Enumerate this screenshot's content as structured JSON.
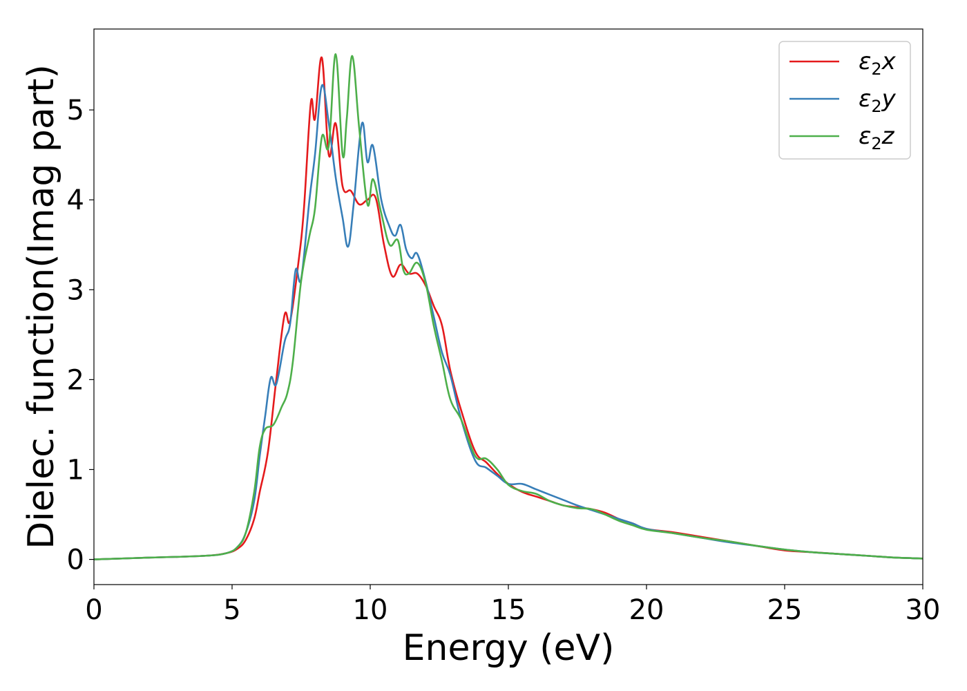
{
  "chart_data": {
    "type": "line",
    "xlabel": "Energy (eV)",
    "ylabel": "Dielec. function(Imag part)",
    "xlim": [
      0,
      30
    ],
    "ylim": [
      -0.28,
      5.9
    ],
    "xticks": [
      0,
      5,
      10,
      15,
      20,
      25,
      30
    ],
    "yticks": [
      0,
      1,
      2,
      3,
      4,
      5
    ],
    "xtick_labels": [
      "0",
      "5",
      "10",
      "15",
      "20",
      "25",
      "30"
    ],
    "ytick_labels": [
      "0",
      "1",
      "2",
      "3",
      "4",
      "5"
    ],
    "grid": false,
    "legend_position": "top-right",
    "series": [
      {
        "name": "ε2x",
        "name_base": "ε",
        "name_sub": "2",
        "name_tail": "x",
        "color": "#e41a1c",
        "x": [
          0,
          2,
          4,
          4.8,
          5.2,
          5.5,
          5.8,
          6.0,
          6.3,
          6.6,
          6.9,
          7.1,
          7.4,
          7.6,
          7.85,
          8.0,
          8.25,
          8.5,
          8.75,
          9.0,
          9.3,
          9.6,
          9.9,
          10.2,
          10.5,
          10.8,
          11.1,
          11.4,
          11.7,
          12.0,
          12.3,
          12.6,
          12.9,
          13.3,
          13.8,
          14.2,
          14.6,
          15.0,
          15.5,
          16.0,
          16.5,
          17.0,
          17.5,
          18.0,
          18.5,
          19.0,
          19.5,
          20.0,
          21.0,
          22.0,
          23.0,
          24.0,
          25.0,
          26.0,
          27.0,
          28.0,
          29.0,
          30.0
        ],
        "y": [
          0.0,
          0.02,
          0.04,
          0.07,
          0.12,
          0.22,
          0.45,
          0.75,
          1.2,
          2.0,
          2.72,
          2.65,
          3.3,
          3.9,
          5.08,
          4.9,
          5.58,
          4.5,
          4.85,
          4.15,
          4.1,
          3.95,
          4.0,
          4.02,
          3.5,
          3.15,
          3.28,
          3.18,
          3.18,
          3.05,
          2.82,
          2.6,
          2.1,
          1.65,
          1.2,
          1.08,
          0.95,
          0.84,
          0.75,
          0.7,
          0.65,
          0.6,
          0.58,
          0.56,
          0.52,
          0.45,
          0.4,
          0.34,
          0.3,
          0.25,
          0.2,
          0.15,
          0.1,
          0.08,
          0.06,
          0.04,
          0.02,
          0.01
        ]
      },
      {
        "name": "ε2y",
        "name_base": "ε",
        "name_sub": "2",
        "name_tail": "y",
        "color": "#377eb8",
        "x": [
          0,
          2,
          4,
          4.8,
          5.2,
          5.5,
          5.8,
          6.0,
          6.2,
          6.4,
          6.6,
          6.9,
          7.1,
          7.3,
          7.5,
          7.8,
          8.0,
          8.25,
          8.5,
          8.75,
          9.0,
          9.2,
          9.4,
          9.7,
          9.9,
          10.1,
          10.4,
          10.7,
          10.9,
          11.1,
          11.3,
          11.5,
          11.7,
          12.0,
          12.3,
          12.6,
          12.9,
          13.3,
          13.8,
          14.2,
          14.6,
          15.0,
          15.5,
          16.0,
          16.5,
          17.0,
          17.5,
          18.0,
          18.5,
          19.0,
          19.5,
          20.0,
          21.0,
          22.0,
          23.0,
          24.0,
          25.0,
          26.0,
          27.0,
          28.0,
          29.0,
          30.0
        ],
        "y": [
          0.0,
          0.02,
          0.04,
          0.07,
          0.14,
          0.3,
          0.65,
          1.15,
          1.6,
          2.02,
          1.95,
          2.42,
          2.62,
          3.22,
          3.12,
          4.0,
          4.5,
          5.27,
          4.85,
          4.25,
          3.8,
          3.48,
          3.95,
          4.85,
          4.42,
          4.6,
          4.0,
          3.7,
          3.6,
          3.72,
          3.45,
          3.35,
          3.4,
          3.1,
          2.7,
          2.3,
          2.05,
          1.55,
          1.1,
          1.02,
          0.93,
          0.84,
          0.84,
          0.78,
          0.72,
          0.66,
          0.6,
          0.55,
          0.5,
          0.45,
          0.4,
          0.34,
          0.29,
          0.24,
          0.19,
          0.15,
          0.11,
          0.08,
          0.06,
          0.04,
          0.02,
          0.01
        ]
      },
      {
        "name": "ε2z",
        "name_base": "ε",
        "name_sub": "2",
        "name_tail": "z",
        "color": "#4daf4a",
        "x": [
          0,
          2,
          4,
          4.8,
          5.2,
          5.5,
          5.8,
          6.0,
          6.2,
          6.5,
          6.8,
          7.0,
          7.2,
          7.5,
          7.8,
          8.0,
          8.25,
          8.5,
          8.75,
          9.0,
          9.15,
          9.35,
          9.6,
          9.9,
          10.1,
          10.4,
          10.7,
          11.0,
          11.2,
          11.4,
          11.7,
          12.0,
          12.3,
          12.6,
          12.9,
          13.3,
          13.8,
          14.2,
          14.6,
          15.0,
          15.5,
          16.0,
          16.5,
          17.0,
          17.5,
          18.0,
          18.5,
          19.0,
          19.5,
          20.0,
          21.0,
          22.0,
          23.0,
          24.0,
          25.0,
          26.0,
          27.0,
          28.0,
          29.0,
          30.0
        ],
        "y": [
          0.0,
          0.02,
          0.04,
          0.07,
          0.14,
          0.3,
          0.75,
          1.25,
          1.45,
          1.5,
          1.7,
          1.85,
          2.2,
          3.1,
          3.6,
          3.9,
          4.7,
          4.6,
          5.62,
          4.5,
          4.9,
          5.6,
          4.8,
          3.95,
          4.23,
          3.85,
          3.5,
          3.55,
          3.22,
          3.18,
          3.3,
          3.08,
          2.6,
          2.2,
          1.78,
          1.55,
          1.15,
          1.12,
          1.0,
          0.83,
          0.76,
          0.73,
          0.65,
          0.6,
          0.57,
          0.56,
          0.5,
          0.43,
          0.38,
          0.33,
          0.29,
          0.24,
          0.2,
          0.15,
          0.11,
          0.08,
          0.06,
          0.04,
          0.02,
          0.01
        ]
      }
    ]
  }
}
